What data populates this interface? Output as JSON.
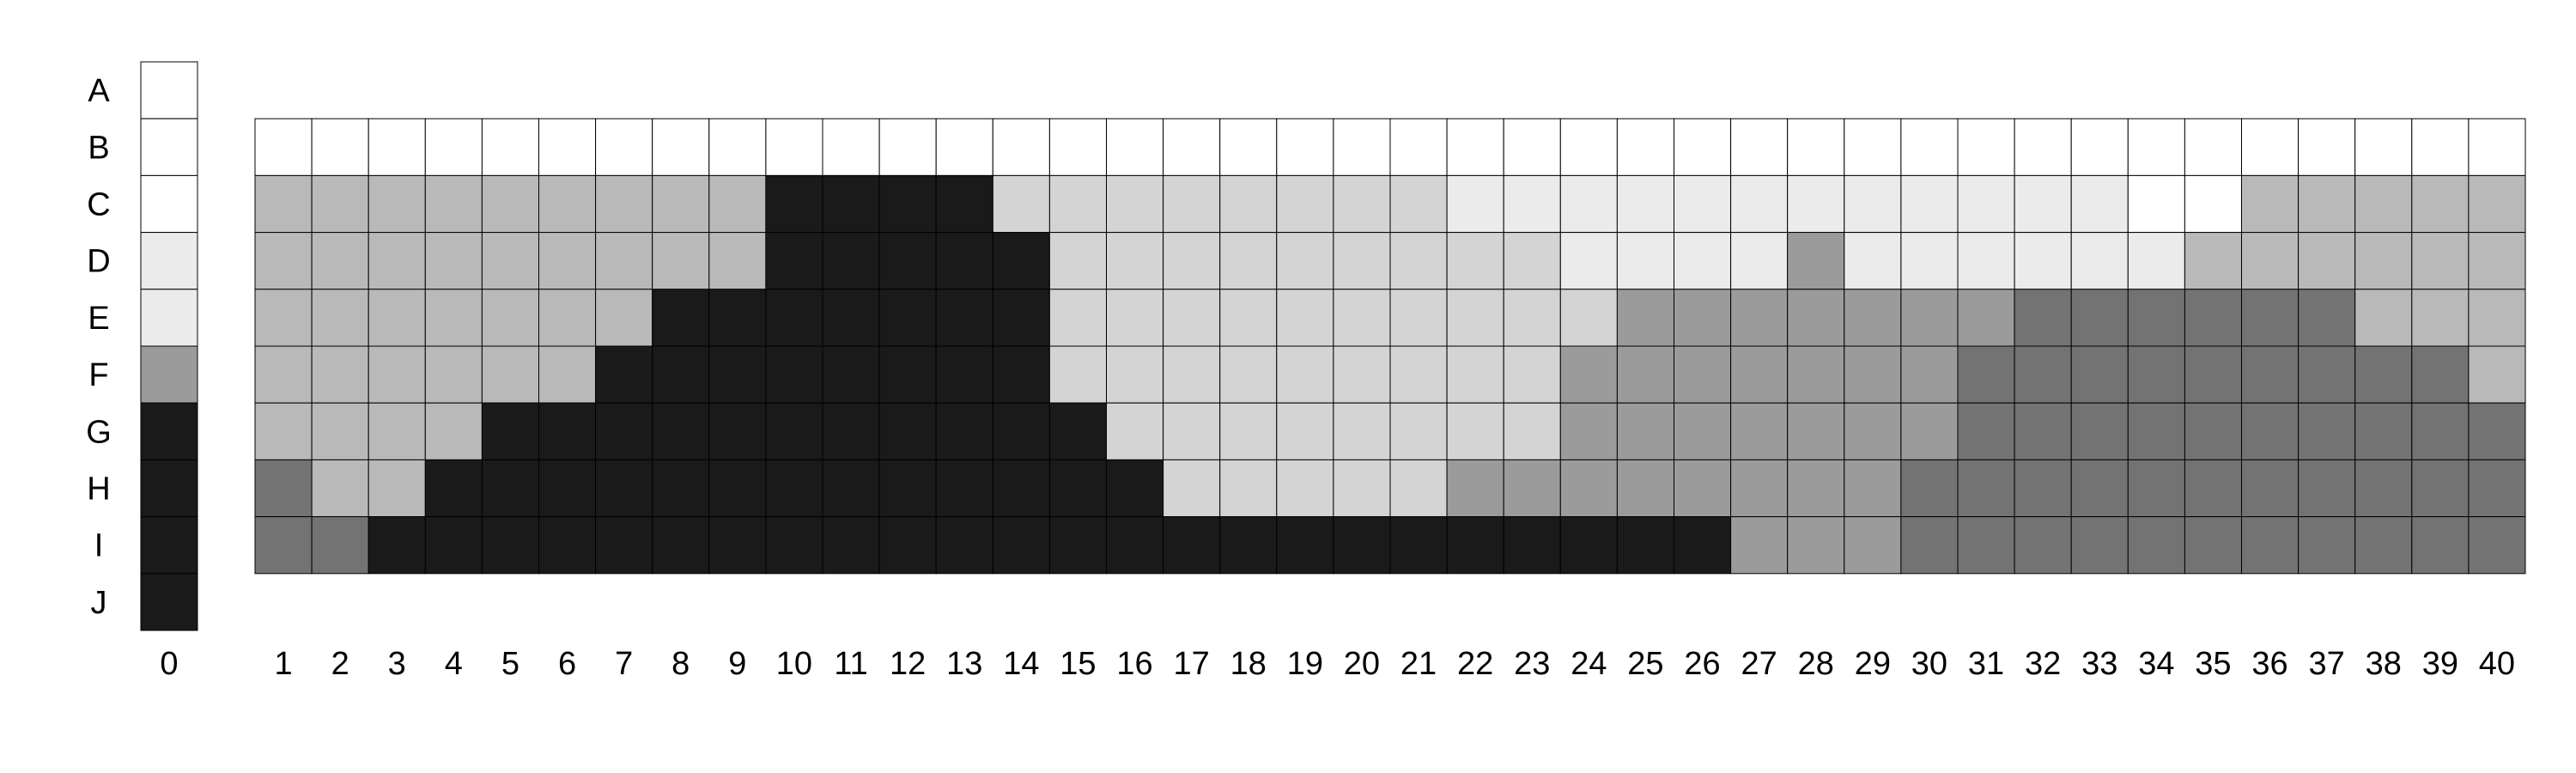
{
  "chart_data": {
    "type": "heatmap",
    "title": "",
    "xlabel": "",
    "ylabel": "",
    "rows": [
      "A",
      "B",
      "C",
      "D",
      "E",
      "F",
      "G",
      "H",
      "I",
      "J"
    ],
    "columns": [
      "0",
      "1",
      "2",
      "3",
      "4",
      "5",
      "6",
      "7",
      "8",
      "9",
      "10",
      "11",
      "12",
      "13",
      "14",
      "15",
      "16",
      "17",
      "18",
      "19",
      "20",
      "21",
      "22",
      "23",
      "24",
      "25",
      "26",
      "27",
      "28",
      "29",
      "30",
      "31",
      "32",
      "33",
      "34",
      "35",
      "36",
      "37",
      "38",
      "39",
      "40"
    ],
    "level_colors": {
      "0": "#ffffff",
      "1": "#ebebeb",
      "2": "#d4d4d4",
      "3": "#b9b9b9",
      "4": "#9b9b9b",
      "5": "#737373",
      "6": "#1a1a1a"
    },
    "reference_column": {
      "column": "0",
      "levels": [
        0,
        0,
        0,
        1,
        1,
        4,
        6,
        6,
        6,
        6
      ]
    },
    "grid_rows": [
      "B",
      "C",
      "D",
      "E",
      "F",
      "G",
      "H",
      "I"
    ],
    "grid_columns": [
      "1",
      "2",
      "3",
      "4",
      "5",
      "6",
      "7",
      "8",
      "9",
      "10",
      "11",
      "12",
      "13",
      "14",
      "15",
      "16",
      "17",
      "18",
      "19",
      "20",
      "21",
      "22",
      "23",
      "24",
      "25",
      "26",
      "27",
      "28",
      "29",
      "30",
      "31",
      "32",
      "33",
      "34",
      "35",
      "36",
      "37",
      "38",
      "39",
      "40"
    ],
    "levels": [
      [
        0,
        0,
        0,
        0,
        0,
        0,
        0,
        0,
        0,
        0,
        0,
        0,
        0,
        0,
        0,
        0,
        0,
        0,
        0,
        0,
        0,
        0,
        0,
        0,
        0,
        0,
        0,
        0,
        0,
        0,
        0,
        0,
        0,
        0,
        0,
        0,
        0,
        0,
        0,
        0
      ],
      [
        3,
        3,
        3,
        3,
        3,
        3,
        3,
        3,
        3,
        6,
        6,
        6,
        6,
        2,
        2,
        2,
        2,
        2,
        2,
        2,
        2,
        1,
        1,
        1,
        1,
        1,
        1,
        1,
        1,
        1,
        1,
        1,
        1,
        0,
        0,
        3,
        3,
        3,
        3,
        3
      ],
      [
        3,
        3,
        3,
        3,
        3,
        3,
        3,
        3,
        3,
        6,
        6,
        6,
        6,
        6,
        2,
        2,
        2,
        2,
        2,
        2,
        2,
        2,
        2,
        1,
        1,
        1,
        1,
        4,
        1,
        1,
        1,
        1,
        1,
        1,
        3,
        3,
        3,
        3,
        3,
        3
      ],
      [
        3,
        3,
        3,
        3,
        3,
        3,
        3,
        6,
        6,
        6,
        6,
        6,
        6,
        6,
        2,
        2,
        2,
        2,
        2,
        2,
        2,
        2,
        2,
        2,
        4,
        4,
        4,
        4,
        4,
        4,
        4,
        5,
        5,
        5,
        5,
        5,
        5,
        3,
        3,
        3
      ],
      [
        3,
        3,
        3,
        3,
        3,
        3,
        6,
        6,
        6,
        6,
        6,
        6,
        6,
        6,
        2,
        2,
        2,
        2,
        2,
        2,
        2,
        2,
        2,
        4,
        4,
        4,
        4,
        4,
        4,
        4,
        5,
        5,
        5,
        5,
        5,
        5,
        5,
        5,
        5,
        3
      ],
      [
        3,
        3,
        3,
        3,
        6,
        6,
        6,
        6,
        6,
        6,
        6,
        6,
        6,
        6,
        6,
        2,
        2,
        2,
        2,
        2,
        2,
        2,
        2,
        4,
        4,
        4,
        4,
        4,
        4,
        4,
        5,
        5,
        5,
        5,
        5,
        5,
        5,
        5,
        5,
        5
      ],
      [
        5,
        3,
        3,
        6,
        6,
        6,
        6,
        6,
        6,
        6,
        6,
        6,
        6,
        6,
        6,
        6,
        2,
        2,
        2,
        2,
        2,
        4,
        4,
        4,
        4,
        4,
        4,
        4,
        4,
        5,
        5,
        5,
        5,
        5,
        5,
        5,
        5,
        5,
        5,
        5
      ],
      [
        5,
        5,
        6,
        6,
        6,
        6,
        6,
        6,
        6,
        6,
        6,
        6,
        6,
        6,
        6,
        6,
        6,
        6,
        6,
        6,
        6,
        6,
        6,
        6,
        6,
        6,
        4,
        4,
        4,
        5,
        5,
        5,
        5,
        5,
        5,
        5,
        5,
        5,
        5,
        5
      ]
    ]
  }
}
